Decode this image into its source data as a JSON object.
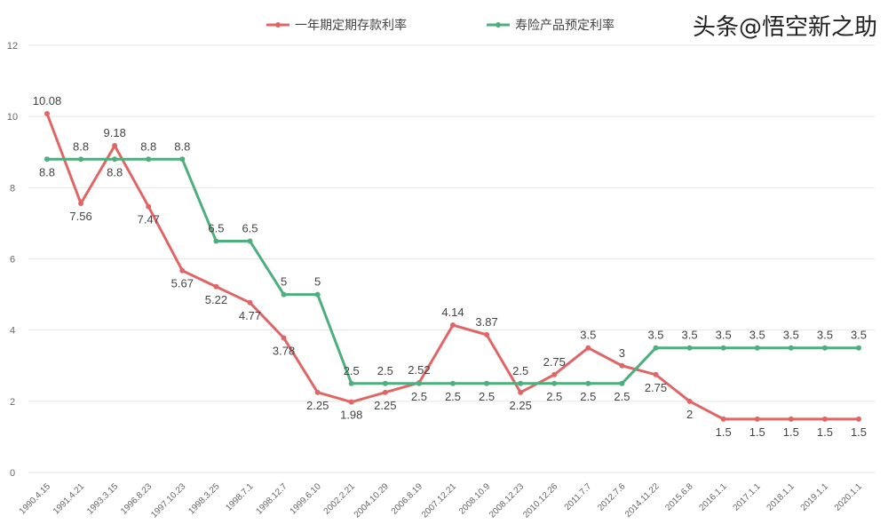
{
  "chart_data": {
    "type": "line",
    "categories": [
      "1990.4.15",
      "1991.4.21",
      "1993.3.15",
      "1996.8.23",
      "1997.10.23",
      "1998.3.25",
      "1998.7.1",
      "1998.12.7",
      "1999.6.10",
      "2002.2.21",
      "2004.10.29",
      "2006.8.19",
      "2007.12.21",
      "2008.10.9",
      "2008.12.23",
      "2010.12.26",
      "2011.7.7",
      "2012.7.6",
      "2014.11.22",
      "2015.6.8",
      "2016.1.1",
      "2017.1.1",
      "2018.1.1",
      "2019.1.1",
      "2020.1.1"
    ],
    "series": [
      {
        "name": "一年期定期存款利率",
        "color": "#e06666",
        "values": [
          10.08,
          7.56,
          9.18,
          7.47,
          5.67,
          5.22,
          4.77,
          3.78,
          2.25,
          1.98,
          2.25,
          2.52,
          4.14,
          3.87,
          2.25,
          2.75,
          3.5,
          3,
          2.75,
          2,
          1.5,
          1.5,
          1.5,
          1.5,
          1.5
        ]
      },
      {
        "name": "寿险产品预定利率",
        "color": "#4caf7d",
        "values": [
          8.8,
          8.8,
          8.8,
          8.8,
          8.8,
          6.5,
          6.5,
          5,
          5,
          2.5,
          2.5,
          2.5,
          2.5,
          2.5,
          2.5,
          2.5,
          2.5,
          2.5,
          3.5,
          3.5,
          3.5,
          3.5,
          3.5,
          3.5,
          3.5
        ]
      }
    ],
    "yticks": [
      0,
      2,
      4,
      6,
      8,
      10,
      12
    ],
    "ylim": [
      0,
      12
    ],
    "grid": "horizontal",
    "legend": "top"
  },
  "watermark": "头条@悟空新之助"
}
